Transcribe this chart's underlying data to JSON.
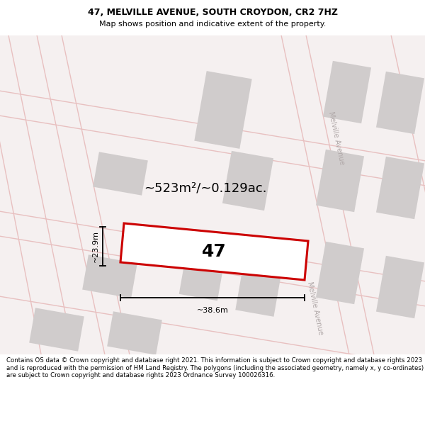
{
  "title": "47, MELVILLE AVENUE, SOUTH CROYDON, CR2 7HZ",
  "subtitle": "Map shows position and indicative extent of the property.",
  "footer": "Contains OS data © Crown copyright and database right 2021. This information is subject to Crown copyright and database rights 2023 and is reproduced with the permission of HM Land Registry. The polygons (including the associated geometry, namely x, y co-ordinates) are subject to Crown copyright and database rights 2023 Ordnance Survey 100026316.",
  "area_label": "~523m²/~0.129ac.",
  "property_number": "47",
  "dim_width": "~38.6m",
  "dim_height": "~23.9m",
  "street_label": "Melville Avenue",
  "map_bg": "#f5f0f0",
  "road_color": "#e8c0c0",
  "block_color": "#d0cccc",
  "property_fill": "#ffffff",
  "property_outline_color": "#cc0000",
  "title_fontsize": 9,
  "subtitle_fontsize": 8,
  "footer_fontsize": 6.2,
  "area_fontsize": 13,
  "number_fontsize": 18,
  "dim_fontsize": 8,
  "street_fontsize": 7
}
